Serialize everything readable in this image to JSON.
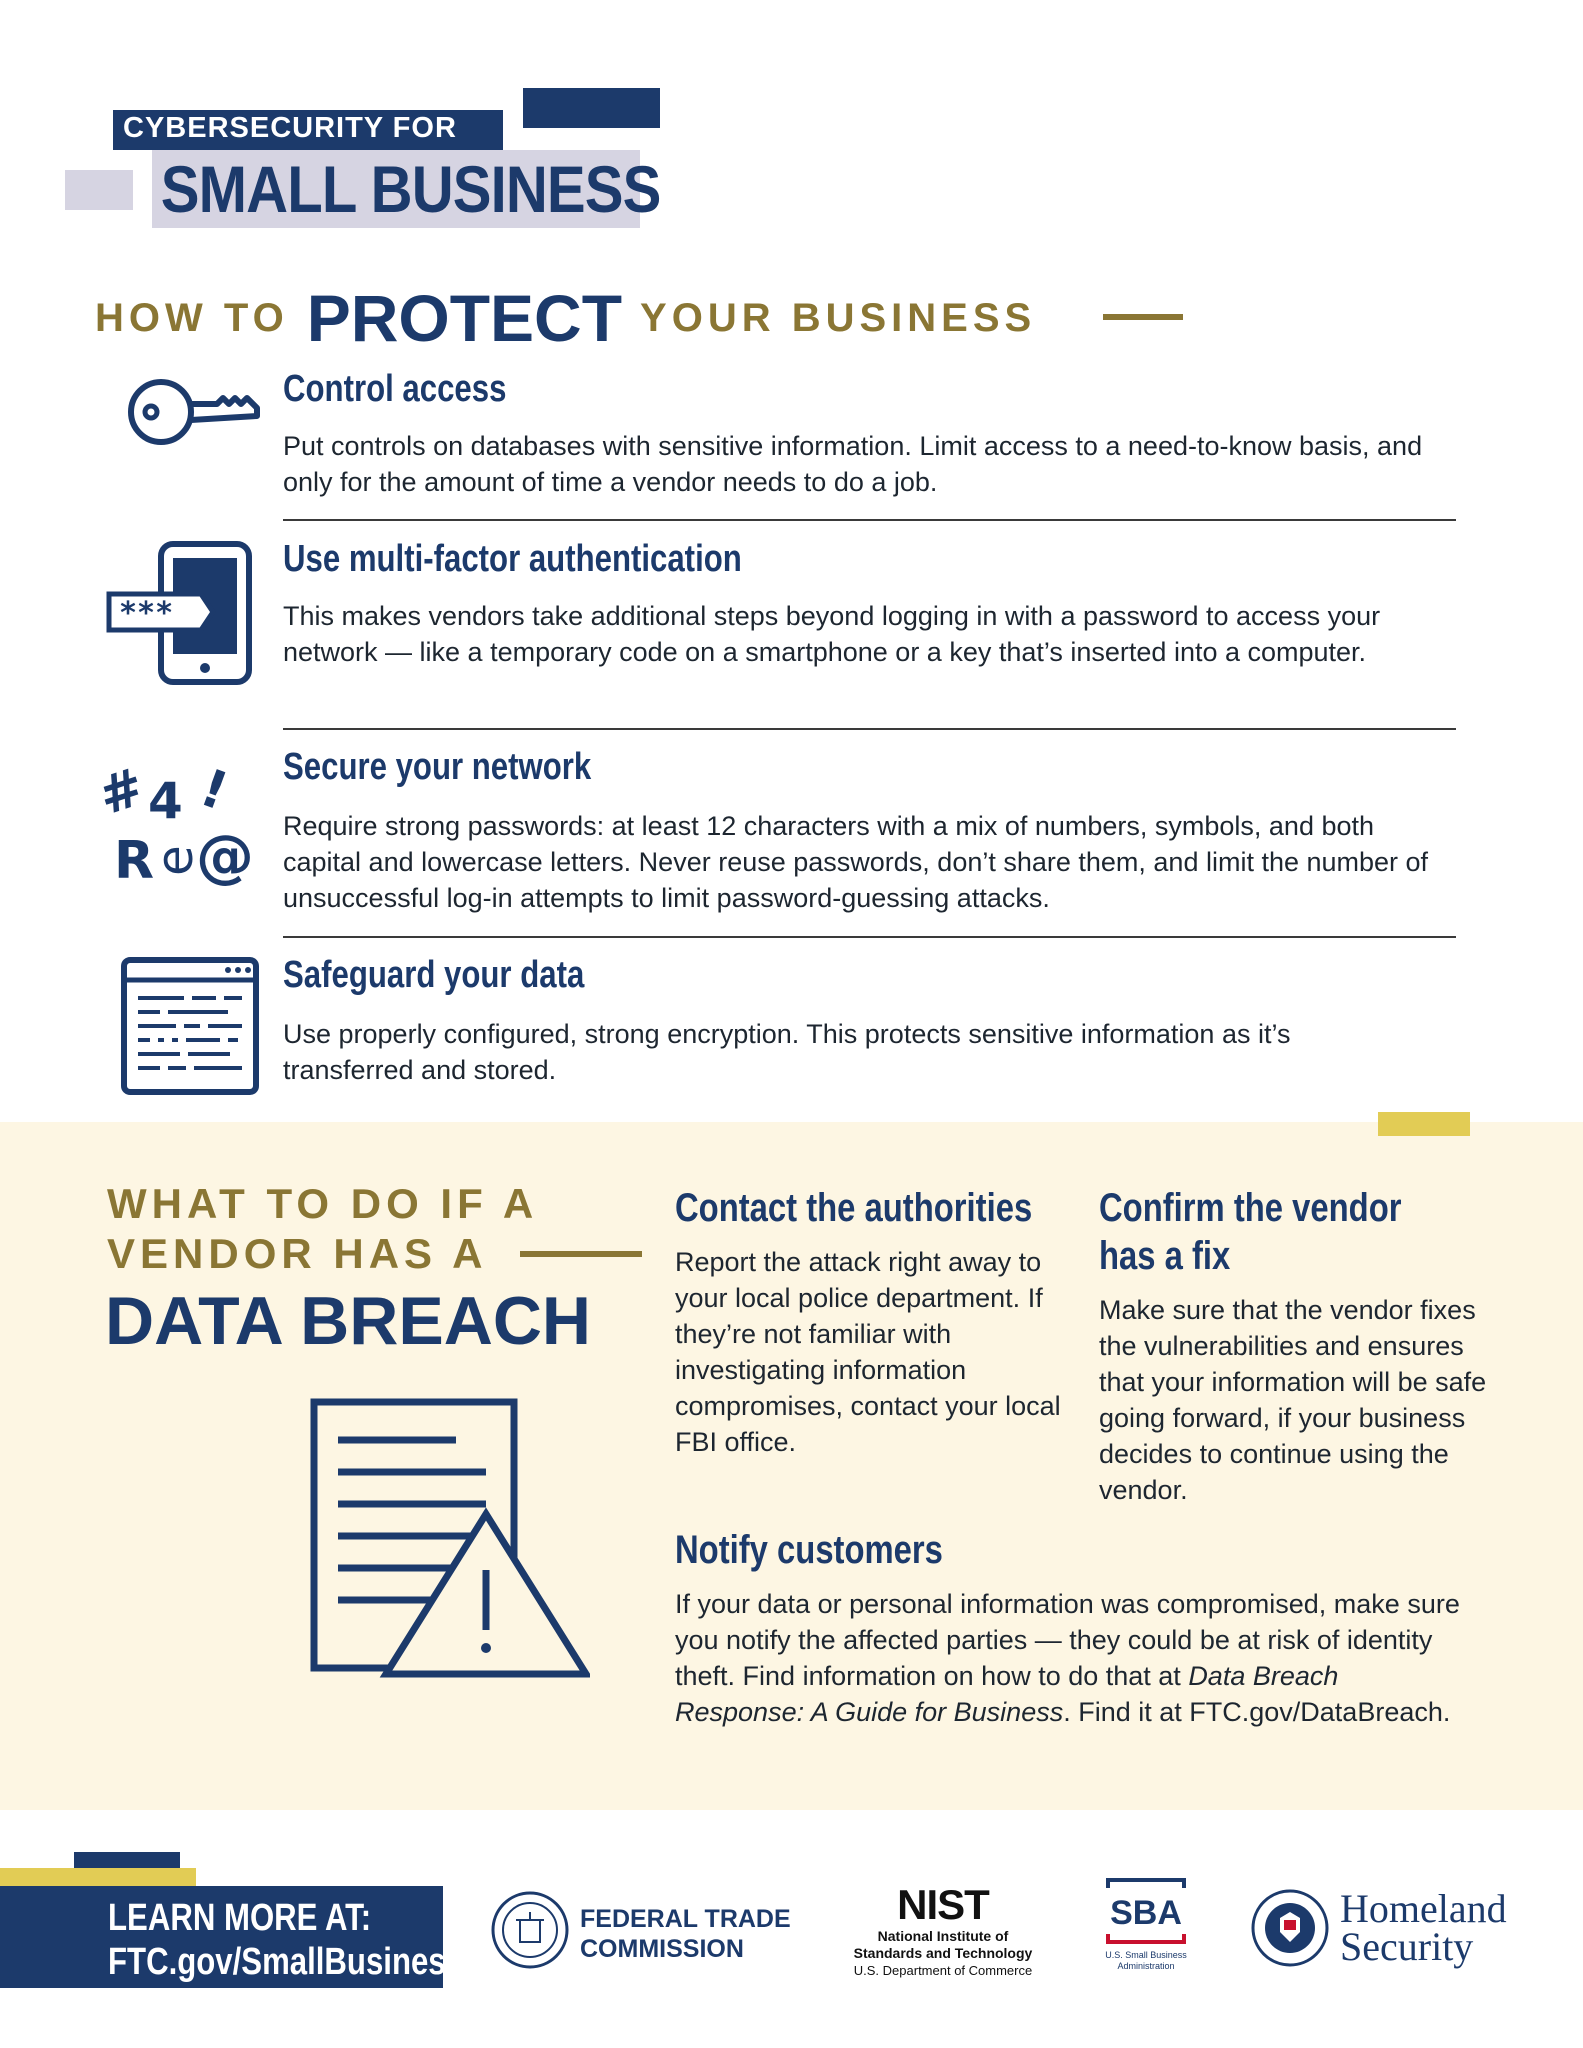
{
  "header": {
    "line1": "CYBERSECURITY FOR",
    "line2": "SMALL BUSINESS"
  },
  "protect": {
    "heading_pre": "HOW TO",
    "heading_emph": "PROTECT",
    "heading_post": "YOUR BUSINESS",
    "items": [
      {
        "icon": "key-icon",
        "title": "Control access",
        "body": "Put controls on databases with sensitive information. Limit access to a need-to-know basis, and only for the amount of time a vendor needs to do a job."
      },
      {
        "icon": "smartphone-password-icon",
        "title": "Use multi-factor authentication",
        "body": "This makes vendors take additional steps beyond logging in with a password to access your network — like a temporary code on a smartphone or a key that’s inserted into a computer.",
        "icon_text": "***"
      },
      {
        "icon": "password-characters-icon",
        "title": "Secure your network",
        "body": "Require strong passwords: at least 12 characters with a mix of numbers, symbols, and both capital and lowercase letters. Never reuse passwords, don’t share them, and limit the number of unsuccessful log-in attempts to limit password-guessing attacks.",
        "icon_glyphs": [
          "#",
          "4",
          "!",
          "R",
          "e",
          "@"
        ]
      },
      {
        "icon": "encrypted-data-window-icon",
        "title": "Safeguard your data",
        "body": "Use properly configured, strong encryption. This protects sensitive information as it’s transferred and stored."
      }
    ]
  },
  "breach": {
    "heading_line1": "WHAT TO DO IF A",
    "heading_line2": "VENDOR HAS A",
    "heading_line3": "DATA BREACH",
    "icon": "document-warning-icon",
    "contact": {
      "title": "Contact the authorities",
      "body": "Report the attack right away to your local police department. If they’re not familiar with investigating information compromises, contact your local FBI office."
    },
    "confirm": {
      "title_line1": "Confirm the vendor",
      "title_line2": "has a fix",
      "body": "Make sure that the vendor fixes the vulnerabilities and ensures that your information will be safe going forward, if your business decides to continue using the vendor."
    },
    "notify": {
      "title": "Notify customers",
      "body_before": "If your data or personal information was compromised, make sure you notify the affected parties — they could be at risk of identity theft. Find information on how to do that at ",
      "body_italic": "Data Breach Response: A Guide for Business",
      "body_after": ". Find it at FTC.gov/DataBreach."
    }
  },
  "footer": {
    "learn_line1": "LEARN MORE AT:",
    "learn_line2": "FTC.gov/SmallBusiness",
    "ftc_line1": "FEDERAL TRADE",
    "ftc_line2": "COMMISSION",
    "nist_logo": "NIST",
    "nist_line1": "National Institute of",
    "nist_line2": "Standards and Technology",
    "nist_line3": "U.S. Department of Commerce",
    "sba_logo": "SBA",
    "sba_line1": "U.S. Small Business",
    "sba_line2": "Administration",
    "dhs_line1": "Homeland",
    "dhs_line2": "Security"
  },
  "colors": {
    "navy": "#1c3a6b",
    "gold": "#8a7634",
    "yellow": "#e2cc55",
    "lavender": "#d6d4e2",
    "cream": "#fdf6e3",
    "sba_red": "#c8102e"
  }
}
